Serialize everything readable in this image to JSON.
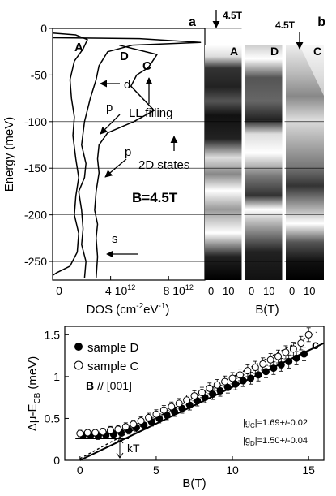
{
  "chart_data": [
    {
      "panel": "a",
      "type": "line",
      "xlabel": "DOS (cm",
      "xlabel_sup1": "-2",
      "xlabel_mid": "eV",
      "xlabel_sup2": "-1",
      "xlabel_end": ")",
      "ylabel": "Energy (meV)",
      "ylim": [
        -270,
        0
      ],
      "y_ticks": [
        0,
        -50,
        -100,
        -150,
        -200,
        -250
      ],
      "x_tick_labels": [
        {
          "text": "0",
          "x": 0
        },
        {
          "text": "4 10",
          "sup": "12",
          "x": 4
        },
        {
          "text": "8 10",
          "sup": "12",
          "x": 8
        }
      ],
      "xlim": [
        0,
        10.5
      ],
      "field_label": "B=4.5T",
      "curve_labels": [
        "A",
        "D",
        "C"
      ],
      "annotations": [
        "d",
        "p",
        "p",
        "s",
        "LL filling",
        "2D states"
      ],
      "series": [
        {
          "name": "A",
          "points": [
            [
              0,
              -5
            ],
            [
              1.6,
              -7
            ],
            [
              2.4,
              -12
            ],
            [
              2.1,
              -22
            ],
            [
              1.5,
              -35
            ],
            [
              1.2,
              -55
            ],
            [
              1.3,
              -75
            ],
            [
              1.5,
              -95
            ],
            [
              1.4,
              -115
            ],
            [
              1.6,
              -140
            ],
            [
              1.8,
              -160
            ],
            [
              1.6,
              -180
            ],
            [
              1.5,
              -200
            ],
            [
              1.8,
              -220
            ],
            [
              1.7,
              -240
            ],
            [
              1.2,
              -255
            ],
            [
              0.3,
              -262
            ],
            [
              0,
              -265
            ]
          ]
        },
        {
          "name": "D",
          "points": [
            [
              0,
              -10
            ],
            [
              6.0,
              -11
            ],
            [
              10.2,
              -15
            ],
            [
              5.5,
              -18
            ],
            [
              3.8,
              -25
            ],
            [
              3.2,
              -40
            ],
            [
              3.0,
              -55
            ],
            [
              2.6,
              -75
            ],
            [
              2.2,
              -100
            ],
            [
              2.0,
              -125
            ],
            [
              2.3,
              -145
            ],
            [
              2.2,
              -160
            ],
            [
              1.8,
              -175
            ],
            [
              2.0,
              -195
            ],
            [
              2.1,
              -215
            ],
            [
              2.0,
              -232
            ],
            [
              2.3,
              -250
            ],
            [
              2.2,
              -268
            ]
          ]
        },
        {
          "name": "C",
          "points": [
            [
              4.6,
              -18
            ],
            [
              7.2,
              -28
            ],
            [
              6.6,
              -42
            ],
            [
              5.8,
              -50
            ],
            [
              5.4,
              -62
            ],
            [
              6.2,
              -75
            ],
            [
              7.0,
              -88
            ],
            [
              5.6,
              -100
            ],
            [
              3.8,
              -112
            ],
            [
              3.2,
              -125
            ],
            [
              3.1,
              -140
            ],
            [
              3.2,
              -155
            ],
            [
              3.0,
              -175
            ],
            [
              2.9,
              -195
            ],
            [
              3.1,
              -210
            ],
            [
              3.0,
              -225
            ],
            [
              3.1,
              -245
            ],
            [
              3.0,
              -268
            ]
          ]
        }
      ]
    },
    {
      "panel": "b",
      "type": "heatmap",
      "panel_label": "b",
      "xlabel": "B(T)",
      "x_tick_labels": [
        "0",
        "10",
        "0",
        "10",
        "0",
        "10"
      ],
      "sample_labels": [
        "A",
        "D",
        "C"
      ],
      "field_marks": [
        "4.5T",
        "4.5T"
      ]
    },
    {
      "panel": "c",
      "type": "scatter",
      "panel_label": "c",
      "xlabel": "B(T)",
      "ylabel": "Δμ-E",
      "ylabel_sub": "CB",
      "ylabel_unit": "(meV)",
      "xlim": [
        -1,
        16
      ],
      "ylim": [
        0,
        1.6
      ],
      "x_ticks": [
        0,
        5,
        10,
        15
      ],
      "y_ticks": [
        0,
        0.5,
        1,
        1.5
      ],
      "y_tick_labels": [
        "0",
        "0.5",
        "1",
        "1.5"
      ],
      "direction_label_b": "B",
      "direction_label_rest": "// [001]",
      "kT_label": "kT",
      "g_labels": [
        "|g",
        "C",
        "|=1.69+/-0.02",
        "|g",
        "D",
        "|=1.50+/-0.04"
      ],
      "series": [
        {
          "name": "sample D",
          "marker": "filled",
          "x": [
            0.2,
            0.7,
            1.2,
            1.7,
            2.2,
            2.7,
            3.2,
            3.7,
            4.2,
            4.7,
            5.2,
            5.7,
            6.2,
            6.7,
            7.2,
            7.7,
            8.2,
            8.7,
            9.2,
            9.7,
            10.2,
            10.7,
            11.2,
            11.7,
            12.2,
            12.7,
            13.2,
            13.7,
            14.2,
            14.7
          ],
          "y": [
            0.3,
            0.3,
            0.29,
            0.3,
            0.31,
            0.33,
            0.36,
            0.39,
            0.42,
            0.46,
            0.5,
            0.54,
            0.58,
            0.62,
            0.66,
            0.71,
            0.75,
            0.79,
            0.83,
            0.87,
            0.91,
            0.95,
            0.98,
            1.02,
            1.06,
            1.1,
            1.14,
            1.18,
            1.22,
            1.27
          ]
        },
        {
          "name": "sample C",
          "marker": "open",
          "x": [
            0.0,
            0.5,
            1.0,
            1.5,
            2.0,
            2.5,
            3.0,
            3.5,
            4.0,
            4.5,
            5.0,
            5.5,
            6.0,
            6.5,
            7.0,
            7.5,
            8.0,
            8.5,
            9.0,
            9.5,
            10.0,
            10.5,
            11.0,
            11.5,
            12.0,
            12.5,
            13.0,
            13.5,
            14.0,
            14.5,
            15.0
          ],
          "y": [
            0.32,
            0.33,
            0.33,
            0.34,
            0.36,
            0.37,
            0.4,
            0.43,
            0.47,
            0.51,
            0.55,
            0.6,
            0.64,
            0.68,
            0.72,
            0.77,
            0.81,
            0.86,
            0.9,
            0.94,
            0.98,
            1.02,
            1.07,
            1.11,
            1.15,
            1.2,
            1.24,
            1.29,
            1.33,
            1.4,
            1.5
          ]
        },
        {
          "name": "fit D",
          "type": "line",
          "x": [
            0,
            16
          ],
          "y": [
            0.0,
            1.4
          ]
        },
        {
          "name": "fit C",
          "type": "line",
          "dashed": true,
          "x": [
            0,
            15.5
          ],
          "y": [
            0.02,
            1.53
          ]
        }
      ],
      "legend_entries": [
        "sample D",
        "sample C"
      ]
    }
  ]
}
